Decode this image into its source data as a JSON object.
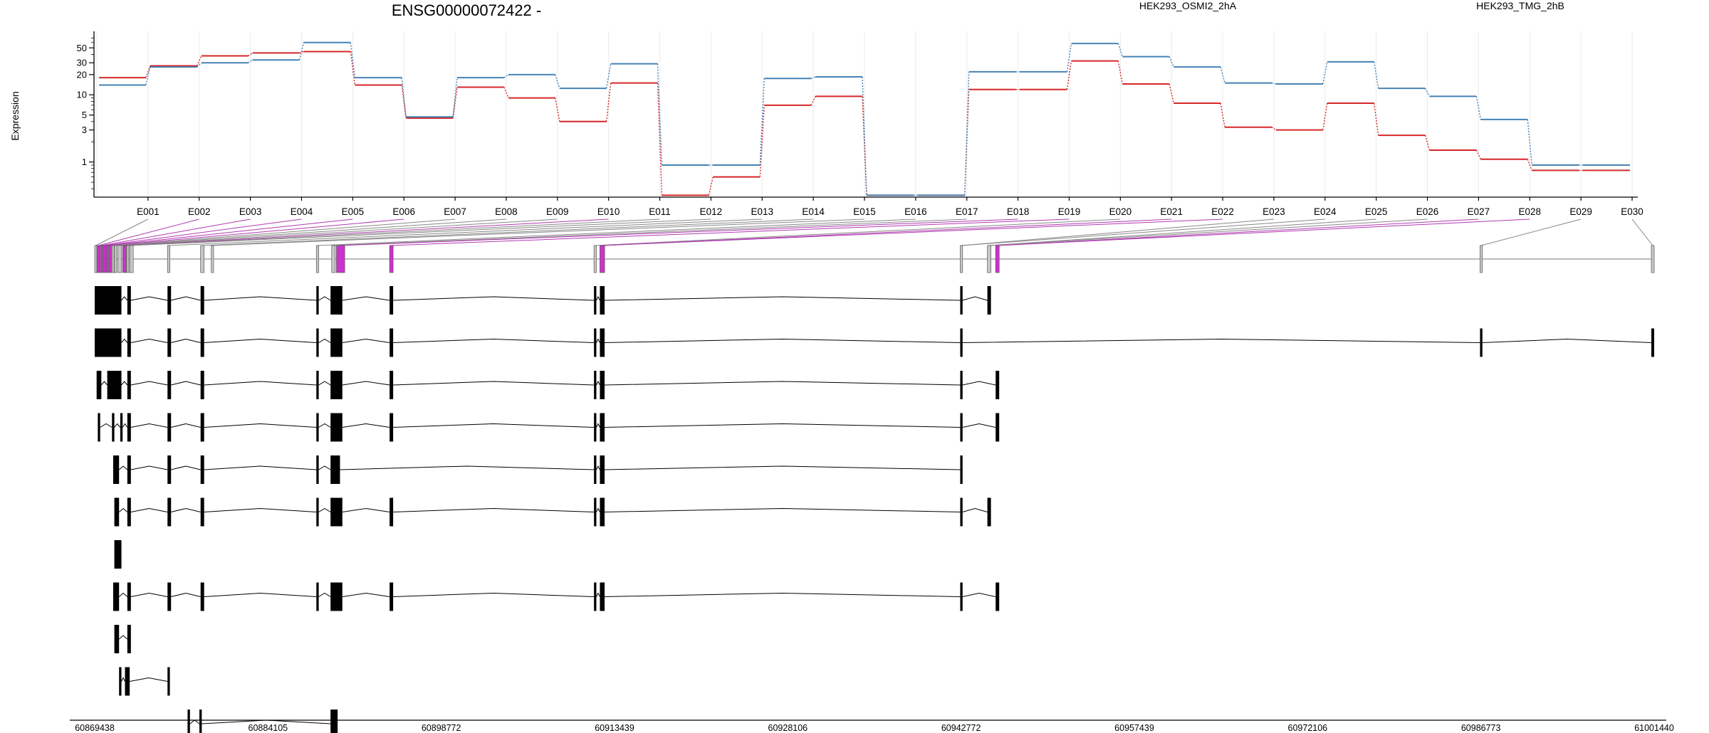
{
  "chart_data": {
    "type": "line",
    "title": "ENSG00000072422 -",
    "ylabel": "Expression",
    "yscale": "log",
    "ylim": [
      0.3,
      80
    ],
    "y_ticks": [
      1,
      3,
      5,
      10,
      20,
      30,
      50
    ],
    "grid": "vertical",
    "legend_position": "top-right",
    "categories": [
      "E001",
      "E002",
      "E003",
      "E004",
      "E005",
      "E006",
      "E007",
      "E008",
      "E009",
      "E010",
      "E011",
      "E012",
      "E013",
      "E014",
      "E015",
      "E016",
      "E017",
      "E018",
      "E019",
      "E020",
      "E021",
      "E022",
      "E023",
      "E024",
      "E025",
      "E026",
      "E027",
      "E028",
      "E029",
      "E030"
    ],
    "series": [
      {
        "name": "HEK293_OSMI2_2hA",
        "color": "#d62728",
        "values": [
          18,
          27,
          38,
          42,
          44,
          14,
          4.5,
          13,
          9,
          4,
          15,
          0.32,
          0.6,
          7,
          9.5,
          0.32,
          0.32,
          12,
          12,
          32,
          14.5,
          7.5,
          3.3,
          3,
          7.5,
          2.5,
          1.5,
          1.1,
          0.75,
          0.75
        ]
      },
      {
        "name": "HEK293_TMG_2hB",
        "color": "#4682b4",
        "values": [
          14,
          26,
          30,
          33,
          60,
          18,
          4.7,
          18,
          20,
          12.5,
          29,
          0.9,
          0.9,
          17.5,
          18.5,
          0.32,
          0.32,
          22,
          22,
          58,
          37,
          26,
          15,
          14.5,
          31,
          12.5,
          9.5,
          4.3,
          0.9,
          0.9
        ]
      }
    ],
    "transcripts": {
      "exons": [
        [
          60869438,
          60869600
        ],
        [
          60869650,
          60869850
        ],
        [
          60869900,
          60870100
        ],
        [
          60870150,
          60870350
        ],
        [
          60870400,
          60870600
        ],
        [
          60870650,
          60870850
        ],
        [
          60870900,
          60871050
        ],
        [
          60871100,
          60871300
        ],
        [
          60871400,
          60871700
        ],
        [
          60871800,
          60872100
        ],
        [
          60872150,
          60872300
        ],
        [
          60872400,
          60872700
        ],
        [
          60875600,
          60875800
        ],
        [
          60878400,
          60878700
        ],
        [
          60879300,
          60879500
        ],
        [
          60888200,
          60888400
        ],
        [
          60889500,
          60889800
        ],
        [
          60889900,
          60890600
        ],
        [
          60894400,
          60894700
        ],
        [
          60911700,
          60911900
        ],
        [
          60912200,
          60912600
        ],
        [
          60942700,
          60942900
        ],
        [
          60945000,
          60945300
        ],
        [
          60945700,
          60946000
        ],
        [
          60986700,
          60986900
        ],
        [
          61001200,
          61001440
        ]
      ],
      "highlighted_exons": [
        1,
        2,
        3,
        4,
        5,
        9,
        17,
        18,
        20,
        23
      ],
      "gray_exons": [
        0,
        6,
        7,
        8,
        10,
        11,
        12,
        13,
        14,
        15,
        16,
        19,
        21,
        22,
        24,
        25
      ],
      "exon_bin_anchor": [
        0,
        1,
        2,
        3,
        4,
        5,
        6,
        7,
        8,
        9,
        10,
        11,
        12,
        13,
        14,
        15,
        16,
        17,
        18,
        19,
        20,
        20,
        21,
        21,
        22,
        22,
        23,
        23,
        24,
        25
      ],
      "rows": [
        [
          [
            60869438,
            60871700
          ],
          [
            60872200,
            60872500
          ],
          [
            60875600,
            60875900
          ],
          [
            60878400,
            60878700
          ],
          [
            60888200,
            60888400
          ],
          [
            60889400,
            60890400
          ],
          [
            60894400,
            60894700
          ],
          [
            60911700,
            60911900
          ],
          [
            60912200,
            60912600
          ],
          [
            60942700,
            60942900
          ],
          [
            60945000,
            60945300
          ]
        ],
        [
          [
            60869438,
            60871700
          ],
          [
            60872200,
            60872500
          ],
          [
            60875600,
            60875900
          ],
          [
            60878400,
            60878700
          ],
          [
            60888200,
            60888400
          ],
          [
            60889400,
            60890400
          ],
          [
            60894400,
            60894700
          ],
          [
            60911700,
            60911900
          ],
          [
            60912200,
            60912600
          ],
          [
            60942700,
            60942900
          ],
          [
            60986700,
            60986900
          ],
          [
            61001200,
            61001440
          ]
        ],
        [
          [
            60869600,
            60870000
          ],
          [
            60870500,
            60871700
          ],
          [
            60872200,
            60872500
          ],
          [
            60875600,
            60875900
          ],
          [
            60878400,
            60878700
          ],
          [
            60888200,
            60888400
          ],
          [
            60889400,
            60890400
          ],
          [
            60894400,
            60894700
          ],
          [
            60911700,
            60911900
          ],
          [
            60912200,
            60912600
          ],
          [
            60942700,
            60942900
          ],
          [
            60945700,
            60946000
          ]
        ],
        [
          [
            60869700,
            60869900
          ],
          [
            60870900,
            60871100
          ],
          [
            60871600,
            60871800
          ],
          [
            60872200,
            60872500
          ],
          [
            60875600,
            60875900
          ],
          [
            60878400,
            60878700
          ],
          [
            60888200,
            60888400
          ],
          [
            60889400,
            60890400
          ],
          [
            60894400,
            60894700
          ],
          [
            60911700,
            60911900
          ],
          [
            60912200,
            60912600
          ],
          [
            60942700,
            60942900
          ],
          [
            60945700,
            60946000
          ]
        ],
        [
          [
            60871000,
            60871500
          ],
          [
            60872200,
            60872500
          ],
          [
            60875600,
            60875900
          ],
          [
            60878400,
            60878700
          ],
          [
            60888200,
            60888400
          ],
          [
            60889400,
            60890200
          ],
          [
            60911700,
            60911900
          ],
          [
            60912200,
            60912600
          ],
          [
            60942700,
            60942900
          ]
        ],
        [
          [
            60871100,
            60871500
          ],
          [
            60872200,
            60872500
          ],
          [
            60875600,
            60875900
          ],
          [
            60878400,
            60878700
          ],
          [
            60888200,
            60888400
          ],
          [
            60889400,
            60890400
          ],
          [
            60894400,
            60894700
          ],
          [
            60911700,
            60911900
          ],
          [
            60912200,
            60912600
          ],
          [
            60942700,
            60942900
          ],
          [
            60945000,
            60945300
          ]
        ],
        [
          [
            60871100,
            60871700
          ]
        ],
        [
          [
            60871000,
            60871500
          ],
          [
            60872200,
            60872500
          ],
          [
            60875600,
            60875900
          ],
          [
            60878400,
            60878700
          ],
          [
            60888200,
            60888400
          ],
          [
            60889400,
            60890400
          ],
          [
            60894400,
            60894700
          ],
          [
            60911700,
            60911900
          ],
          [
            60912200,
            60912600
          ],
          [
            60942700,
            60942900
          ],
          [
            60945700,
            60946000
          ]
        ],
        [
          [
            60871100,
            60871500
          ],
          [
            60872200,
            60872500
          ]
        ],
        [
          [
            60871500,
            60871700
          ],
          [
            60872000,
            60872400
          ],
          [
            60875600,
            60875800
          ]
        ],
        [
          [
            60877300,
            60877500
          ],
          [
            60878300,
            60878500
          ],
          [
            60889400,
            60890000
          ]
        ]
      ]
    },
    "x_axis": {
      "range": [
        60869438,
        61001440
      ],
      "ticks": [
        60869438,
        60884105,
        60898772,
        60913439,
        60928106,
        60942772,
        60957439,
        60972106,
        60986773,
        61001440
      ]
    }
  }
}
